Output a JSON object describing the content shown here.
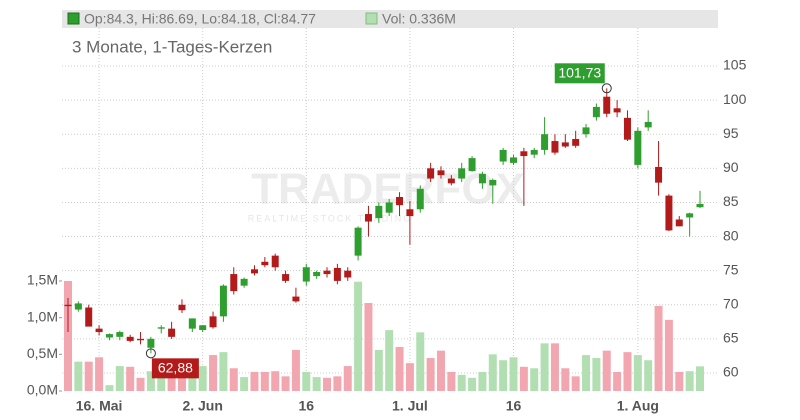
{
  "chart_data": {
    "type": "candlestick",
    "title": "3 Monate, 1-Tages-Kerzen",
    "ohlc_label": "Op:84.3, Hi:86.69, Lo:84.18, Cl:84.77",
    "volume_label": "Vol: 0.336M",
    "watermark": "TRADERFOX",
    "watermark_sub": "REALTIME STOCK TRADING",
    "high_label": "101,73",
    "low_label": "62,88",
    "categories": [
      null,
      null,
      null,
      "16. Mai",
      null,
      null,
      null,
      null,
      null,
      null,
      null,
      null,
      null,
      "2. Jun",
      null,
      null,
      null,
      null,
      null,
      null,
      null,
      null,
      null,
      "16",
      null,
      null,
      null,
      null,
      null,
      null,
      null,
      null,
      null,
      "1. Jul",
      null,
      null,
      null,
      null,
      null,
      null,
      null,
      null,
      null,
      "16",
      null,
      null,
      null,
      null,
      null,
      null,
      null,
      null,
      null,
      null,
      null,
      "1. Aug",
      null,
      null,
      null,
      null,
      null,
      null
    ],
    "open": [
      70,
      69.3,
      69.6,
      66.5,
      65.2,
      65.3,
      65.3,
      65,
      63.7,
      66.5,
      66.5,
      70,
      66.5,
      66.3,
      68.3,
      68.3,
      74.5,
      72.8,
      75.2,
      76.3,
      77.2,
      74.5,
      71.2,
      73.4,
      74.2,
      75,
      75.4,
      75,
      77.2,
      83.3,
      82.7,
      83.5,
      85.8,
      84,
      84,
      90,
      89.7,
      88.5,
      88.5,
      89.6,
      87.8,
      87.5,
      91,
      90.8,
      92.5,
      92,
      92.7,
      94,
      93.8,
      94.3,
      95,
      97.5,
      100.5,
      98.8,
      97.4,
      90.5,
      96,
      90.2,
      86,
      82.5,
      82.8,
      84.3
    ],
    "high": [
      71,
      70.5,
      70,
      67,
      65.8,
      66.2,
      65.6,
      66,
      65.3,
      67,
      67.5,
      70.8,
      68,
      67,
      69,
      73,
      75.5,
      74,
      75.8,
      77,
      77.5,
      75,
      72.5,
      76,
      75,
      75.5,
      76,
      75.5,
      81.5,
      84.5,
      85,
      85.5,
      86.5,
      85.2,
      87.5,
      90.8,
      90.3,
      89,
      90.8,
      91.8,
      89.5,
      88.5,
      93,
      92,
      93,
      93,
      97.5,
      95,
      95,
      95.5,
      96.5,
      99.5,
      101.73,
      100,
      98.5,
      96,
      98.5,
      94,
      86.2,
      83,
      83.5,
      86.69
    ],
    "low": [
      66,
      69,
      67,
      65.5,
      64.8,
      64.8,
      64.5,
      64.2,
      62.88,
      65.8,
      65,
      68.8,
      66,
      66,
      66.5,
      67.5,
      71.5,
      72.5,
      74.3,
      75.5,
      75,
      73.2,
      70.3,
      72.8,
      73.8,
      74,
      73,
      73.5,
      76.5,
      80,
      82,
      83,
      83,
      78.8,
      83.5,
      88,
      88.5,
      87.5,
      88,
      89.5,
      87,
      84.8,
      90.5,
      90.5,
      84.5,
      91.5,
      92,
      92,
      93,
      93,
      94.5,
      97,
      97.5,
      97.5,
      94,
      90,
      95.5,
      86,
      80.8,
      81.5,
      80,
      84.18
    ],
    "close": [
      69.8,
      70.2,
      66.8,
      66,
      65.7,
      66,
      64.7,
      64.8,
      65,
      66.7,
      65.3,
      69.2,
      68,
      67,
      66.7,
      72.8,
      72,
      73.8,
      74.6,
      75.8,
      75.5,
      73.5,
      70.5,
      75.5,
      74.8,
      74.5,
      73.5,
      74,
      81.3,
      82.2,
      84.5,
      85,
      84.6,
      83,
      87,
      88.5,
      89,
      87.8,
      90,
      91.5,
      89.2,
      88.3,
      92.7,
      91.6,
      91.8,
      92.7,
      95,
      92.3,
      93.2,
      93.3,
      96,
      99,
      98,
      98.2,
      94.2,
      95.5,
      96.8,
      87.9,
      80.9,
      81.5,
      83.4,
      84.77
    ],
    "volume": [
      1.5,
      0.4,
      0.4,
      0.46,
      0.08,
      0.34,
      0.33,
      0.18,
      0.27,
      0.29,
      0.31,
      0.27,
      0.38,
      0.34,
      0.49,
      0.53,
      0.31,
      0.19,
      0.26,
      0.26,
      0.27,
      0.2,
      0.56,
      0.26,
      0.19,
      0.18,
      0.2,
      0.34,
      1.49,
      1.2,
      0.56,
      0.83,
      0.6,
      0.38,
      0.8,
      0.45,
      0.55,
      0.26,
      0.22,
      0.18,
      0.26,
      0.5,
      0.42,
      0.46,
      0.33,
      0.31,
      0.65,
      0.65,
      0.31,
      0.2,
      0.49,
      0.45,
      0.55,
      0.26,
      0.53,
      0.49,
      0.42,
      1.16,
      0.97,
      0.26,
      0.27,
      0.336
    ],
    "up_color": "#2e9e2e",
    "down_color": "#b31b1b",
    "volume_up_color": "#b2dfb2",
    "volume_down_color": "#f2a7b0",
    "ylim": [
      57.36,
      110.57
    ],
    "yticks": [
      60,
      65,
      70,
      75,
      80,
      85,
      90,
      95,
      100,
      105
    ],
    "y2lim": [
      0,
      4.95
    ],
    "y2ticks": [
      {
        "value": 0,
        "label": "0,0M"
      },
      {
        "value": 0.5,
        "label": "0,5M"
      },
      {
        "value": 1,
        "label": "1,0M"
      },
      {
        "value": 1.5,
        "label": "1,5M"
      }
    ],
    "grid": true
  }
}
